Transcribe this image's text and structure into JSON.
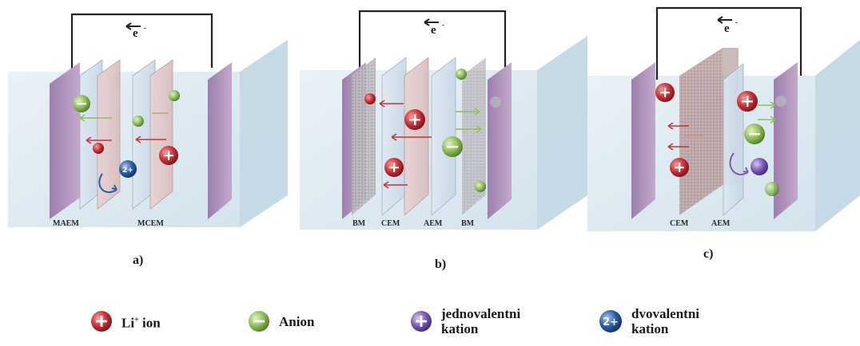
{
  "panels": [
    {
      "id": "a",
      "label": "a)",
      "electron": "e",
      "membranes": [
        "MAEM",
        "MCEM"
      ]
    },
    {
      "id": "b",
      "label": "b)",
      "electron": "e",
      "membranes": [
        "BM",
        "CEM",
        "AEM",
        "BM"
      ]
    },
    {
      "id": "c",
      "label": "c)",
      "electron": "e",
      "membranes": [
        "CEM",
        "AEM"
      ]
    }
  ],
  "legend": [
    {
      "symbol": "+",
      "label": "Li",
      "sup": "+",
      "label2": " ion",
      "color": "#c8323a"
    },
    {
      "symbol": "−",
      "label": "Anion",
      "color": "#8fbf5a"
    },
    {
      "symbol": "+",
      "label": "jednovalentni",
      "label_line2": "kation",
      "color": "#7b5bb5"
    },
    {
      "symbol": "2+",
      "label": "dvovalentni",
      "label_line2": "kation",
      "color": "#2b5ea8"
    }
  ],
  "colors": {
    "electrode": "#a98bb5",
    "box": "#d8e6ee",
    "cation": "#c8323a",
    "anion": "#8fbf5a",
    "mono": "#7b5bb5",
    "di": "#2b5ea8"
  }
}
